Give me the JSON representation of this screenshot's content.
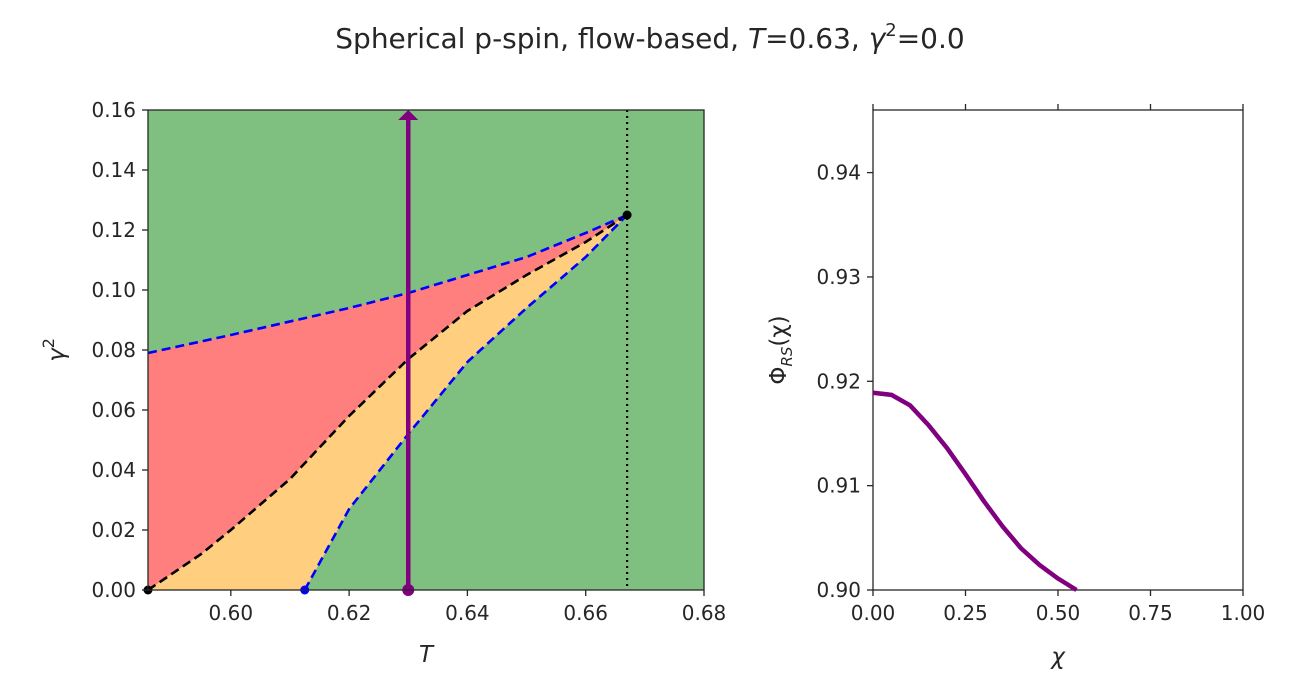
{
  "title": {
    "prefix": "Spherical p-spin, flow-based, ",
    "t_sym": "T",
    "t_val": "=0.63, ",
    "g_sym": "γ",
    "g_sup": "2",
    "g_val": "=0.0"
  },
  "chart_data": [
    {
      "type": "area",
      "xlabel": "T",
      "ylabel_base": "γ",
      "ylabel_sup": "2",
      "xlim": [
        0.586,
        0.68
      ],
      "ylim": [
        0.0,
        0.16
      ],
      "xticks": [
        0.6,
        0.62,
        0.64,
        0.66,
        0.68
      ],
      "xtick_labels": [
        "0.60",
        "0.62",
        "0.64",
        "0.66",
        "0.68"
      ],
      "yticks": [
        0.0,
        0.02,
        0.04,
        0.06,
        0.08,
        0.1,
        0.12,
        0.14,
        0.16
      ],
      "ytick_labels": [
        "0.00",
        "0.02",
        "0.04",
        "0.06",
        "0.08",
        "0.10",
        "0.12",
        "0.14",
        "0.16"
      ],
      "colors": {
        "background": "#7fbf7f",
        "red_region": "#ff7f7f",
        "orange_region": "#ffcf7f",
        "blue": "#0000ff",
        "black": "#000000",
        "purple": "#800080"
      },
      "curves": {
        "upper_blue": [
          [
            0.586,
            0.079
          ],
          [
            0.6,
            0.085
          ],
          [
            0.62,
            0.094
          ],
          [
            0.63,
            0.099
          ],
          [
            0.64,
            0.105
          ],
          [
            0.65,
            0.111
          ],
          [
            0.66,
            0.119
          ],
          [
            0.667,
            0.125
          ]
        ],
        "middle_black": [
          [
            0.586,
            0.0
          ],
          [
            0.595,
            0.012
          ],
          [
            0.6,
            0.02
          ],
          [
            0.61,
            0.037
          ],
          [
            0.62,
            0.058
          ],
          [
            0.63,
            0.077
          ],
          [
            0.64,
            0.093
          ],
          [
            0.65,
            0.105
          ],
          [
            0.66,
            0.116
          ],
          [
            0.667,
            0.125
          ]
        ],
        "lower_blue": [
          [
            0.6125,
            0.0
          ],
          [
            0.62,
            0.027
          ],
          [
            0.63,
            0.052
          ],
          [
            0.64,
            0.076
          ],
          [
            0.65,
            0.094
          ],
          [
            0.66,
            0.111
          ],
          [
            0.667,
            0.125
          ]
        ]
      },
      "vline_T": 0.667,
      "points": {
        "black_left": [
          0.586,
          0.0
        ],
        "blue_bottom": [
          0.6125,
          0.0
        ],
        "black_top": [
          0.667,
          0.125
        ]
      },
      "arrow": {
        "x": 0.63,
        "y_start": 0.0,
        "y_end": 0.16
      }
    },
    {
      "type": "line",
      "xlabel": "χ",
      "ylabel": "Φ_RS(χ)",
      "ylabel_main": "Φ",
      "ylabel_sub": "RS",
      "ylabel_arg": "(χ)",
      "xlim": [
        0.0,
        1.0
      ],
      "ylim": [
        0.9,
        0.946
      ],
      "xticks": [
        0.0,
        0.25,
        0.5,
        0.75,
        1.0
      ],
      "xtick_labels": [
        "0.00",
        "0.25",
        "0.50",
        "0.75",
        "1.00"
      ],
      "yticks": [
        0.9,
        0.91,
        0.92,
        0.93,
        0.94
      ],
      "ytick_labels": [
        "0.90",
        "0.91",
        "0.92",
        "0.93",
        "0.94"
      ],
      "series": [
        {
          "color": "#800080",
          "x": [
            0.0,
            0.05,
            0.1,
            0.15,
            0.2,
            0.25,
            0.3,
            0.35,
            0.4,
            0.45,
            0.5,
            0.55
          ],
          "y": [
            0.9189,
            0.9187,
            0.9177,
            0.9158,
            0.9136,
            0.9111,
            0.9085,
            0.9061,
            0.904,
            0.9024,
            0.9011,
            0.8999
          ]
        }
      ]
    }
  ]
}
